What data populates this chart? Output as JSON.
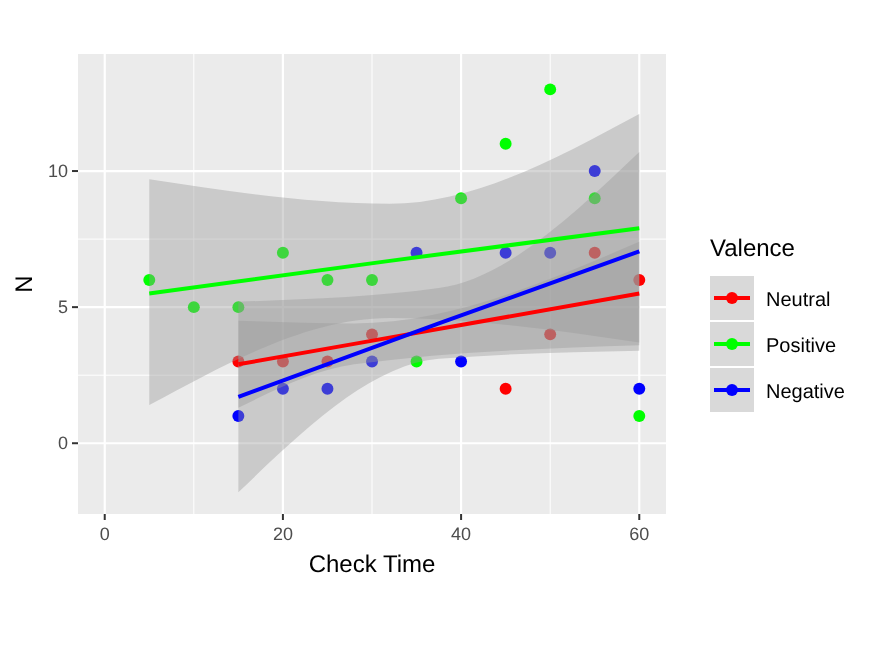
{
  "chart_data": {
    "type": "scatter",
    "xlabel": "Check Time",
    "ylabel": "N",
    "legend_title": "Valence",
    "xlim": [
      -3,
      63
    ],
    "ylim": [
      -2.6,
      14.3
    ],
    "xticks": [
      0,
      20,
      40,
      60
    ],
    "yticks": [
      0,
      5,
      10
    ],
    "grid": true,
    "legend": "right",
    "marker": "circle",
    "series": [
      {
        "name": "Neutral",
        "color": "#ff0000",
        "x": [
          15,
          20,
          25,
          30,
          45,
          50,
          55,
          60
        ],
        "values": [
          3,
          3,
          3,
          4,
          2,
          4,
          7,
          6
        ]
      },
      {
        "name": "Positive",
        "color": "#00ff00",
        "x": [
          5,
          10,
          15,
          20,
          25,
          30,
          35,
          40,
          45,
          50,
          55,
          60
        ],
        "values": [
          6,
          5,
          5,
          7,
          6,
          6,
          3,
          9,
          11,
          13,
          9,
          1
        ]
      },
      {
        "name": "Negative",
        "color": "#0000ff",
        "x": [
          15,
          20,
          25,
          30,
          35,
          40,
          45,
          50,
          55,
          60
        ],
        "values": [
          1,
          2,
          2,
          3,
          7,
          3,
          7,
          7,
          10,
          2
        ]
      },
      {
        "type": "line",
        "marker": "none",
        "color": "#ff0000",
        "x": [
          15,
          28,
          60
        ],
        "values": [
          2.9,
          3.65,
          5.5
        ],
        "lower": [
          1.3,
          2.9,
          3.6
        ],
        "upper": [
          4.5,
          4.4,
          7.4
        ]
      },
      {
        "type": "line",
        "marker": "none",
        "color": "#00ff00",
        "x": [
          5,
          32,
          60
        ],
        "values": [
          5.5,
          6.7,
          7.9
        ],
        "lower": [
          1.4,
          4.6,
          3.7
        ],
        "upper": [
          9.7,
          8.8,
          12.1
        ]
      },
      {
        "type": "line",
        "marker": "none",
        "color": "#0000ff",
        "x": [
          15,
          37.5,
          60
        ],
        "values": [
          1.7,
          4.4,
          7.05
        ],
        "lower": [
          -1.8,
          3.1,
          3.4
        ],
        "upper": [
          5.2,
          5.7,
          10.7
        ]
      }
    ]
  }
}
